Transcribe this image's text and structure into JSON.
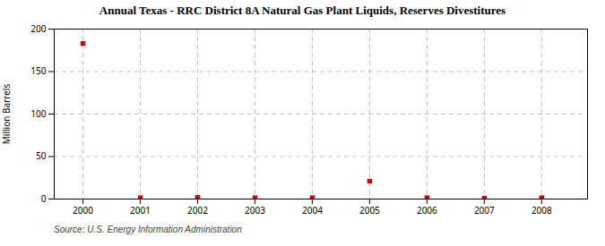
{
  "chart_data": {
    "type": "scatter",
    "title": "Annual Texas - RRC District 8A Natural Gas Plant Liquids, Reserves Divestitures",
    "ylabel": "Million Barrels",
    "source": "Source: U.S. Energy Information Administration",
    "x": [
      2000,
      2001,
      2002,
      2003,
      2004,
      2005,
      2006,
      2007,
      2008
    ],
    "values": [
      183.0,
      1.5,
      2.0,
      1.5,
      1.5,
      21.0,
      1.5,
      1.0,
      1.5
    ],
    "color": "#cc0000",
    "marker": "square",
    "xlim": [
      1999.5,
      2008.8
    ],
    "xticks": [
      2000,
      2001,
      2002,
      2003,
      2004,
      2005,
      2006,
      2007,
      2008
    ],
    "ylim": [
      0,
      200
    ],
    "yticks": [
      0,
      50,
      100,
      150,
      200
    ],
    "grid": true
  }
}
